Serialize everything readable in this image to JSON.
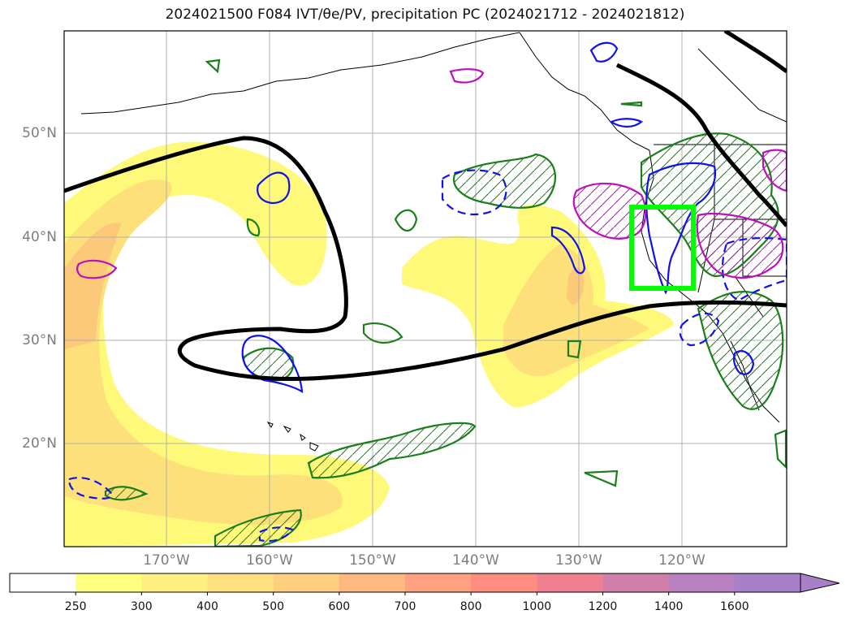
{
  "title": "2024021500 F084 IVT/θe/PV, precipitation PC (2024021712 - 2024021812)",
  "lat_labels": [
    {
      "value": 50,
      "text": "50°N"
    },
    {
      "value": 40,
      "text": "40°N"
    },
    {
      "value": 30,
      "text": "30°N"
    },
    {
      "value": 20,
      "text": "20°N"
    }
  ],
  "lon_labels": [
    {
      "value": -170,
      "text": "170°W"
    },
    {
      "value": -160,
      "text": "160°W"
    },
    {
      "value": -150,
      "text": "150°W"
    },
    {
      "value": -140,
      "text": "140°W"
    },
    {
      "value": -130,
      "text": "130°W"
    },
    {
      "value": -120,
      "text": "120°W"
    }
  ],
  "colorbar": {
    "levels": [
      "250",
      "300",
      "400",
      "500",
      "600",
      "700",
      "800",
      "1000",
      "1200",
      "1400",
      "1600"
    ],
    "colors": [
      "#ffffff",
      "#ffff80",
      "#ffef80",
      "#ffe080",
      "#ffcf80",
      "#ffb980",
      "#ffa080",
      "#ff8c80",
      "#f08090",
      "#d080a8",
      "#b880c0",
      "#a880c8"
    ],
    "extend": "max"
  },
  "colors": {
    "ivt_light": "#fff97a",
    "ivt_mid": "#fde07a",
    "ivt_strong": "#fcc87a",
    "jet_contour": "#000000",
    "precip_contour": "#1a7f1a",
    "pv_contour": "#1010ee",
    "theta_contour": "#bb10bb",
    "target_box": "#00ff00"
  },
  "target_box_region": {
    "lat": [
      35,
      43
    ],
    "lon": [
      -125,
      -119
    ]
  }
}
